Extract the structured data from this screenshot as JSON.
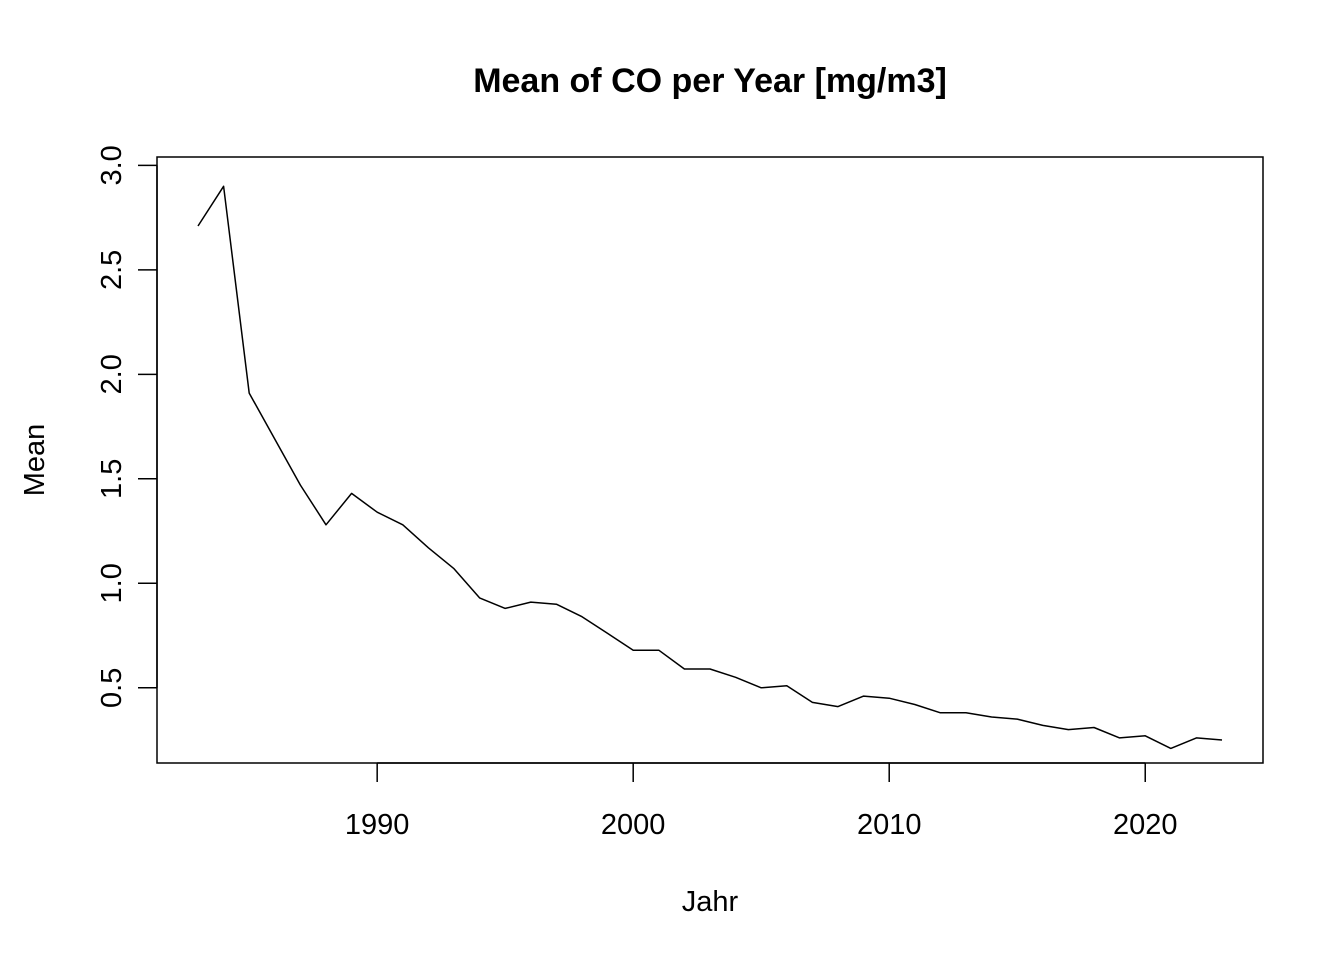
{
  "chart_data": {
    "type": "line",
    "title": "Mean of CO per Year [mg/m3]",
    "xlabel": "Jahr",
    "ylabel": "Mean",
    "xlim": [
      1981.4,
      1984.6
    ],
    "ylim": [
      0.14,
      3.04
    ],
    "x_ticks": [
      1990,
      2000,
      2010,
      2020
    ],
    "y_ticks": [
      0.5,
      1.0,
      1.5,
      2.0,
      2.5,
      3.0
    ],
    "x_tick_labels": [
      "1990",
      "2000",
      "2010",
      "2020"
    ],
    "y_tick_labels": [
      "0.5",
      "1.0",
      "1.5",
      "2.0",
      "2.5",
      "3.0"
    ],
    "grid": false,
    "series": [
      {
        "x": [
          1983,
          1984,
          1985,
          1986,
          1987,
          1988,
          1989,
          1990,
          1991,
          1992,
          1993,
          1994,
          1995,
          1996,
          1997,
          1998,
          1999,
          2000,
          2001,
          2002,
          2003,
          2004,
          2005,
          2006,
          2007,
          2008,
          2009,
          2010,
          2011,
          2012,
          2013,
          2014,
          2015,
          2016,
          2017,
          2018,
          2019,
          2020,
          2021,
          2022,
          2023
        ],
        "values": [
          2.71,
          2.9,
          1.91,
          1.69,
          1.47,
          1.28,
          1.43,
          1.34,
          1.28,
          1.17,
          1.07,
          0.93,
          0.88,
          0.91,
          0.9,
          0.84,
          0.76,
          0.68,
          0.68,
          0.59,
          0.59,
          0.55,
          0.5,
          0.51,
          0.43,
          0.41,
          0.46,
          0.45,
          0.42,
          0.38,
          0.38,
          0.36,
          0.35,
          0.32,
          0.3,
          0.31,
          0.26,
          0.27,
          0.21,
          0.26,
          0.25
        ]
      }
    ]
  }
}
